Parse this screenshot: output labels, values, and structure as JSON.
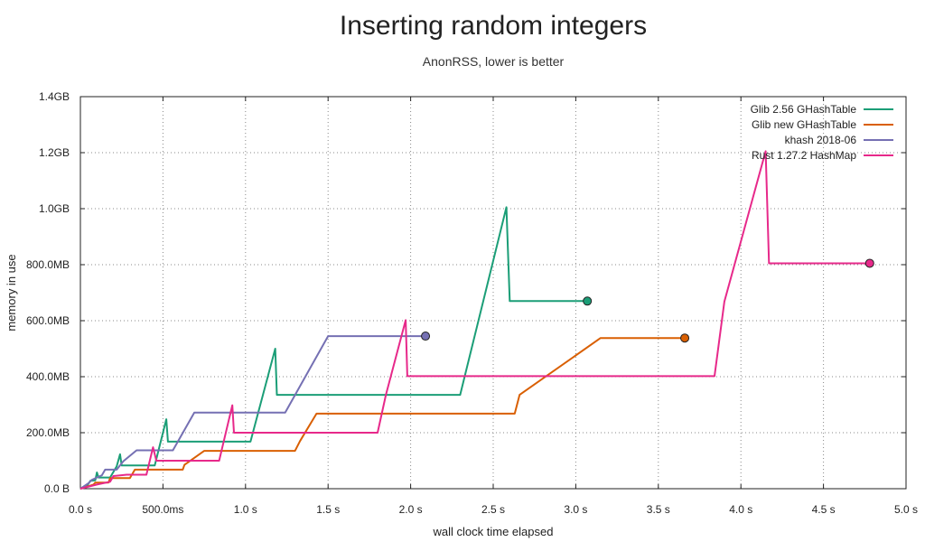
{
  "chart_data": {
    "type": "line",
    "title": "Inserting random integers",
    "subtitle": "AnonRSS, lower is better",
    "xlabel": "wall clock time elapsed",
    "ylabel": "memory in use",
    "xlim": [
      0,
      5
    ],
    "ylim": [
      0,
      1400
    ],
    "x_ticks": [
      0,
      0.5,
      1,
      1.5,
      2,
      2.5,
      3,
      3.5,
      4,
      4.5,
      5
    ],
    "x_tick_labels": [
      "0.0 s",
      "500.0ms",
      "1.0 s",
      "1.5 s",
      "2.0 s",
      "2.5 s",
      "3.0 s",
      "3.5 s",
      "4.0 s",
      "4.5 s",
      "5.0 s"
    ],
    "y_ticks": [
      0,
      200,
      400,
      600,
      800,
      1000,
      1200,
      1400
    ],
    "y_tick_labels": [
      "0.0 B",
      "200.0MB",
      "400.0MB",
      "600.0MB",
      "800.0MB",
      "1.0GB",
      "1.2GB",
      "1.4GB"
    ],
    "grid": true,
    "legend_position": "top-right",
    "series": [
      {
        "name": "Glib 2.56 GHashTable",
        "color": "#1b9e77",
        "x": [
          0,
          0.04,
          0.06,
          0.09,
          0.1,
          0.11,
          0.18,
          0.22,
          0.24,
          0.25,
          0.45,
          0.52,
          0.53,
          1.03,
          1.18,
          1.19,
          2.3,
          2.58,
          2.6,
          3.07
        ],
        "y": [
          0,
          10,
          28,
          30,
          58,
          40,
          40,
          80,
          123,
          83,
          83,
          248,
          168,
          168,
          500,
          335,
          335,
          1005,
          670,
          670
        ]
      },
      {
        "name": "Glib new GHashTable",
        "color": "#d95f02",
        "x": [
          0,
          0.08,
          0.09,
          0.17,
          0.18,
          0.3,
          0.33,
          0.62,
          0.63,
          0.75,
          1.3,
          1.33,
          1.43,
          2.63,
          2.66,
          3.15,
          3.66
        ],
        "y": [
          0,
          15,
          22,
          22,
          38,
          38,
          68,
          68,
          85,
          135,
          135,
          170,
          268,
          268,
          335,
          538,
          538
        ]
      },
      {
        "name": "khash 2018-06",
        "color": "#7570b3",
        "x": [
          0,
          0.05,
          0.07,
          0.13,
          0.15,
          0.22,
          0.26,
          0.34,
          0.45,
          0.56,
          0.69,
          1.24,
          1.5,
          2.09
        ],
        "y": [
          0,
          20,
          32,
          48,
          68,
          68,
          98,
          137,
          137,
          137,
          272,
          272,
          545,
          545
        ]
      },
      {
        "name": "Rust 1.27.2 HashMap",
        "color": "#e7298a",
        "x": [
          0,
          0.1,
          0.18,
          0.2,
          0.28,
          0.4,
          0.44,
          0.46,
          0.84,
          0.92,
          0.93,
          1.8,
          1.85,
          1.97,
          1.98,
          3.84,
          3.9,
          4.15,
          4.17,
          4.78
        ],
        "y": [
          0,
          15,
          25,
          45,
          50,
          50,
          148,
          100,
          100,
          298,
          200,
          200,
          335,
          602,
          402,
          402,
          668,
          1205,
          805,
          805
        ]
      }
    ]
  }
}
